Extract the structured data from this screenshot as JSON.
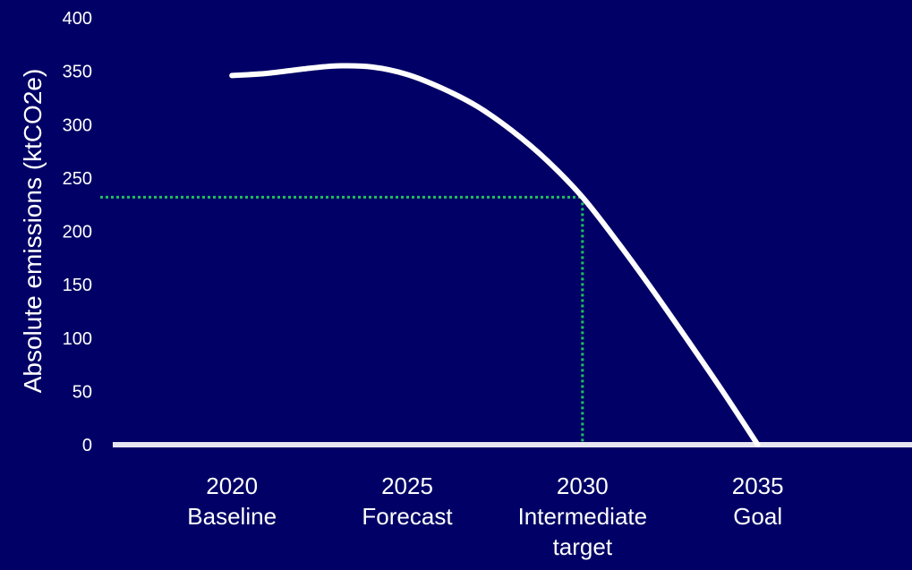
{
  "chart_data": {
    "type": "line",
    "ylabel": "Absolute emissions (ktCO2e)",
    "xlabel": "",
    "ylim": [
      0,
      400
    ],
    "yticks": [
      0,
      50,
      100,
      150,
      200,
      250,
      300,
      350,
      400
    ],
    "x_range": [
      2016.6,
      2039.4
    ],
    "categories": [
      {
        "x": 2020,
        "year": "2020",
        "label": "Baseline"
      },
      {
        "x": 2025,
        "year": "2025",
        "label": "Forecast"
      },
      {
        "x": 2030,
        "year": "2030",
        "label": "Intermediate\ntarget"
      },
      {
        "x": 2035,
        "year": "2035",
        "label": "Goal"
      }
    ],
    "series": [
      {
        "x": [
          2020,
          2021,
          2022,
          2023,
          2024,
          2025,
          2026,
          2027,
          2028,
          2029,
          2030,
          2031,
          2032,
          2033,
          2034,
          2035
        ],
        "values": [
          346,
          348,
          352,
          355,
          354,
          347,
          334,
          317,
          294,
          266,
          232,
          190,
          145,
          98,
          50,
          0
        ],
        "color": "#ffffff"
      }
    ],
    "reference_point": {
      "x": 2030,
      "y": 232,
      "color": "#1fbf60",
      "style": "dotted"
    },
    "grid": false,
    "baseline_color": "#e6e6f2"
  }
}
